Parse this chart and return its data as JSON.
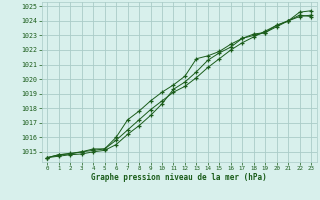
{
  "x": [
    0,
    1,
    2,
    3,
    4,
    5,
    6,
    7,
    8,
    9,
    10,
    11,
    12,
    13,
    14,
    15,
    16,
    17,
    18,
    19,
    20,
    21,
    22,
    23
  ],
  "line1": [
    1014.6,
    1014.7,
    1014.8,
    1014.85,
    1015.0,
    1015.1,
    1015.5,
    1016.2,
    1016.8,
    1017.5,
    1018.3,
    1019.3,
    1019.8,
    1020.5,
    1021.3,
    1021.8,
    1022.2,
    1022.8,
    1023.0,
    1023.2,
    1023.7,
    1024.0,
    1024.6,
    1024.7
  ],
  "line2": [
    1014.6,
    1014.8,
    1014.85,
    1015.0,
    1015.1,
    1015.2,
    1015.8,
    1016.5,
    1017.2,
    1017.9,
    1018.5,
    1019.1,
    1019.5,
    1020.1,
    1020.8,
    1021.4,
    1022.0,
    1022.5,
    1022.9,
    1023.3,
    1023.7,
    1024.0,
    1024.3,
    1024.4
  ],
  "line3": [
    1014.6,
    1014.8,
    1014.9,
    1015.0,
    1015.2,
    1015.2,
    1016.0,
    1017.2,
    1017.8,
    1018.5,
    1019.1,
    1019.6,
    1020.2,
    1021.4,
    1021.6,
    1021.9,
    1022.4,
    1022.8,
    1023.1,
    1023.2,
    1023.6,
    1024.0,
    1024.4,
    1024.3
  ],
  "bg_color": "#d8f0ec",
  "grid_color": "#aaccc8",
  "line_color": "#1a5c1a",
  "xlabel": "Graphe pression niveau de la mer (hPa)",
  "ylim": [
    1014.3,
    1025.3
  ],
  "xlim": [
    -0.5,
    23.5
  ],
  "yticks": [
    1015,
    1016,
    1017,
    1018,
    1019,
    1020,
    1021,
    1022,
    1023,
    1024,
    1025
  ],
  "xticks": [
    0,
    1,
    2,
    3,
    4,
    5,
    6,
    7,
    8,
    9,
    10,
    11,
    12,
    13,
    14,
    15,
    16,
    17,
    18,
    19,
    20,
    21,
    22,
    23
  ]
}
